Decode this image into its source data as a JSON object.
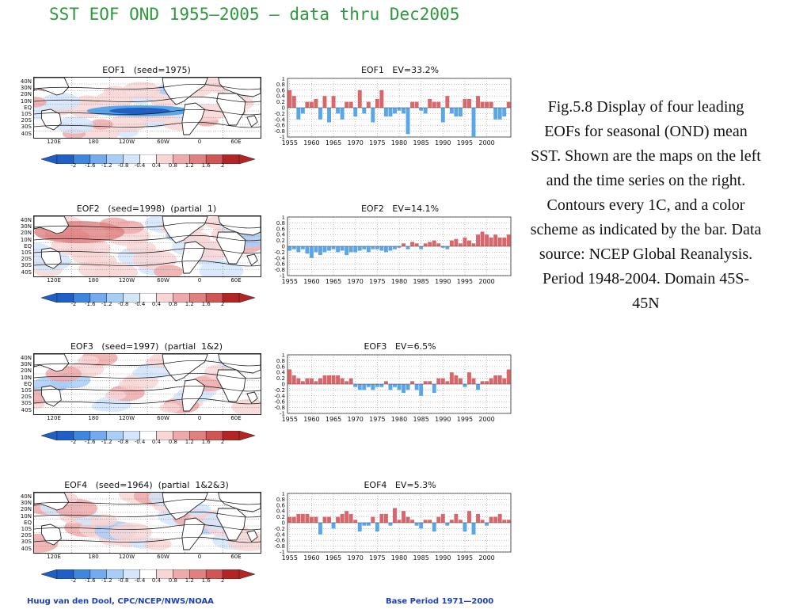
{
  "main_title": "SST EOF OND 1955—2005 — data thru Dec2005",
  "caption": "Fig.5.8 Display of  four leading EOFs for seasonal (OND) mean SST. Shown are the maps on the left and the time series on the right. Contours every 1C, and a color scheme as indicated by the bar. Data source: NCEP Global Reanalysis. Period 1948-2004. Domain 45S-45N",
  "footer_left": "Huug van den Dool, CPC/NCEP/NWS/NOAA",
  "footer_right": "Base Period 1971—2000",
  "colors": {
    "positive": "#d9666b",
    "negative": "#5aa6e8",
    "title": "#2c9a3a",
    "footer": "#1d3fb8"
  },
  "map_lat_labels": [
    "40N",
    "30N",
    "20N",
    "10N",
    "EQ",
    "10S",
    "20S",
    "30S",
    "40S"
  ],
  "map_lon_labels": [
    "120E",
    "180",
    "120W",
    "60W",
    "0",
    "60E"
  ],
  "colorbar_labels": [
    "-2",
    "-1.6",
    "-1.2",
    "-0.8",
    "-0.4",
    "0.4",
    "0.8",
    "1.2",
    "1.6",
    "2"
  ],
  "colorbar_colors": [
    "#1f5fc7",
    "#3f86de",
    "#73aaf0",
    "#a9cdf7",
    "#d3e6fb",
    "#ffffff",
    "#f8d6d6",
    "#eeaaaa",
    "#e08080",
    "#d25555",
    "#b32525"
  ],
  "panels": [
    {
      "map_title": "EOF1   (seed=1975)",
      "ts_title": "EOF1   EV=33.2%"
    },
    {
      "map_title": "EOF2   (seed=1998)  (partial  1)",
      "ts_title": "EOF2   EV=14.1%"
    },
    {
      "map_title": "EOF3   (seed=1997)  (partial  1&2)",
      "ts_title": "EOF3   EV=6.5%"
    },
    {
      "map_title": "EOF4   (seed=1964)  (partial  1&2&3)",
      "ts_title": "EOF4   EV=5.3%"
    }
  ],
  "chart_data": [
    {
      "type": "bar",
      "title": "EOF1   EV=33.2%",
      "x": [
        1955,
        1956,
        1957,
        1958,
        1959,
        1960,
        1961,
        1962,
        1963,
        1964,
        1965,
        1966,
        1967,
        1968,
        1969,
        1970,
        1971,
        1972,
        1973,
        1974,
        1975,
        1976,
        1977,
        1978,
        1979,
        1980,
        1981,
        1982,
        1983,
        1984,
        1985,
        1986,
        1987,
        1988,
        1989,
        1990,
        1991,
        1992,
        1993,
        1994,
        1995,
        1996,
        1997,
        1998,
        1999,
        2000,
        2001,
        2002,
        2003,
        2004,
        2005
      ],
      "values": [
        0.6,
        0.4,
        -0.4,
        -0.2,
        0.2,
        0.2,
        0.3,
        -0.4,
        0.4,
        -0.5,
        0.4,
        -0.2,
        -0.4,
        0.2,
        0.2,
        -0.3,
        0.6,
        -0.2,
        0.2,
        -0.5,
        0.3,
        0.6,
        -0.3,
        -0.3,
        -0.2,
        -0.1,
        -0.2,
        -0.9,
        0.2,
        0.2,
        -0.1,
        -0.2,
        0.3,
        0.2,
        0.2,
        -0.5,
        0.4,
        -0.2,
        -0.3,
        -0.3,
        0.3,
        0.3,
        -1.0,
        0.4,
        0.2,
        0.2,
        0.2,
        -0.4,
        -0.4,
        -0.3,
        0.2
      ],
      "ylim": [
        -1,
        1
      ],
      "ytick_labels": [
        "1",
        "0.8",
        "0.6",
        "0.4",
        "0.2",
        "0",
        "-0.2",
        "-0.4",
        "-0.6",
        "-0.8",
        "-1"
      ],
      "xtick_labels": [
        "1955",
        "1960",
        "1965",
        "1970",
        "1975",
        "1980",
        "1985",
        "1990",
        "1995",
        "2000"
      ],
      "grid": true
    },
    {
      "type": "bar",
      "title": "EOF2   EV=14.1%",
      "x": [
        1955,
        1956,
        1957,
        1958,
        1959,
        1960,
        1961,
        1962,
        1963,
        1964,
        1965,
        1966,
        1967,
        1968,
        1969,
        1970,
        1971,
        1972,
        1973,
        1974,
        1975,
        1976,
        1977,
        1978,
        1979,
        1980,
        1981,
        1982,
        1983,
        1984,
        1985,
        1986,
        1987,
        1988,
        1989,
        1990,
        1991,
        1992,
        1993,
        1994,
        1995,
        1996,
        1997,
        1998,
        1999,
        2000,
        2001,
        2002,
        2003,
        2004,
        2005
      ],
      "values": [
        -0.15,
        -0.1,
        -0.2,
        -0.1,
        -0.25,
        -0.4,
        -0.2,
        -0.3,
        -0.2,
        -0.15,
        -0.1,
        -0.2,
        -0.15,
        -0.3,
        -0.2,
        -0.2,
        -0.15,
        -0.1,
        -0.2,
        -0.1,
        -0.1,
        -0.15,
        -0.2,
        -0.15,
        -0.1,
        -0.05,
        0.1,
        -0.1,
        0.15,
        0.1,
        -0.1,
        0.1,
        0.15,
        0.2,
        0.1,
        -0.05,
        -0.1,
        0.2,
        0.25,
        0.1,
        0.3,
        0.2,
        0.1,
        0.4,
        0.5,
        0.4,
        0.3,
        0.4,
        0.3,
        0.3,
        0.4
      ],
      "ylim": [
        -1,
        1
      ],
      "ytick_labels": [
        "1",
        "0.8",
        "0.6",
        "0.4",
        "0.2",
        "0",
        "-0.2",
        "-0.4",
        "-0.6",
        "-0.8",
        "-1"
      ],
      "xtick_labels": [
        "1955",
        "1960",
        "1965",
        "1970",
        "1975",
        "1980",
        "1985",
        "1990",
        "1995",
        "2000"
      ],
      "grid": true
    },
    {
      "type": "bar",
      "title": "EOF3   EV=6.5%",
      "x": [
        1955,
        1956,
        1957,
        1958,
        1959,
        1960,
        1961,
        1962,
        1963,
        1964,
        1965,
        1966,
        1967,
        1968,
        1969,
        1970,
        1971,
        1972,
        1973,
        1974,
        1975,
        1976,
        1977,
        1978,
        1979,
        1980,
        1981,
        1982,
        1983,
        1984,
        1985,
        1986,
        1987,
        1988,
        1989,
        1990,
        1991,
        1992,
        1993,
        1994,
        1995,
        1996,
        1997,
        1998,
        1999,
        2000,
        2001,
        2002,
        2003,
        2004,
        2005
      ],
      "values": [
        0.5,
        0.3,
        0.2,
        0.1,
        0.2,
        0.2,
        0.1,
        0.2,
        0.3,
        0.3,
        0.3,
        0.3,
        0.2,
        0.1,
        0.2,
        -0.1,
        -0.2,
        -0.2,
        -0.1,
        -0.2,
        -0.1,
        -0.1,
        0.1,
        -0.2,
        -0.1,
        -0.2,
        -0.3,
        -0.2,
        0.1,
        -0.2,
        -0.4,
        0.1,
        0.1,
        -0.3,
        0.2,
        0.2,
        0.1,
        0.4,
        0.3,
        0.2,
        -0.1,
        0.4,
        0.2,
        -0.2,
        0.1,
        0.1,
        0.2,
        0.3,
        0.3,
        0.2,
        0.5
      ],
      "ylim": [
        -1,
        1
      ],
      "ytick_labels": [
        "1",
        "0.8",
        "0.6",
        "0.4",
        "0.2",
        "0",
        "-0.2",
        "-0.4",
        "-0.6",
        "-0.8",
        "-1"
      ],
      "xtick_labels": [
        "1955",
        "1960",
        "1965",
        "1970",
        "1975",
        "1980",
        "1985",
        "1990",
        "1995",
        "2000"
      ],
      "grid": true
    },
    {
      "type": "bar",
      "title": "EOF4   EV=5.3%",
      "x": [
        1955,
        1956,
        1957,
        1958,
        1959,
        1960,
        1961,
        1962,
        1963,
        1964,
        1965,
        1966,
        1967,
        1968,
        1969,
        1970,
        1971,
        1972,
        1973,
        1974,
        1975,
        1976,
        1977,
        1978,
        1979,
        1980,
        1981,
        1982,
        1983,
        1984,
        1985,
        1986,
        1987,
        1988,
        1989,
        1990,
        1991,
        1992,
        1993,
        1994,
        1995,
        1996,
        1997,
        1998,
        1999,
        2000,
        2001,
        2002,
        2003,
        2004,
        2005
      ],
      "values": [
        0.2,
        0.2,
        0.3,
        0.3,
        0.3,
        0.2,
        0.2,
        -0.4,
        0.2,
        0.2,
        -0.2,
        0.2,
        0.3,
        0.4,
        0.3,
        0.1,
        -0.3,
        -0.1,
        -0.1,
        0.2,
        -0.3,
        0.3,
        0.3,
        -0.1,
        0.5,
        0.1,
        0.4,
        0.2,
        0.1,
        -0.1,
        -0.2,
        0.1,
        0.1,
        -0.3,
        0.2,
        0.3,
        -0.1,
        0.1,
        0.3,
        0.1,
        -0.3,
        0.4,
        -0.4,
        0.3,
        0.1,
        -0.1,
        0.2,
        0.2,
        0.3,
        0.1,
        0.1
      ],
      "ylim": [
        -1,
        1
      ],
      "ytick_labels": [
        "1",
        "0.8",
        "0.6",
        "0.4",
        "0.2",
        "0",
        "-0.2",
        "-0.4",
        "-0.6",
        "-0.8",
        "-1"
      ],
      "xtick_labels": [
        "1955",
        "1960",
        "1965",
        "1970",
        "1975",
        "1980",
        "1985",
        "1990",
        "1995",
        "2000"
      ],
      "grid": true
    }
  ]
}
